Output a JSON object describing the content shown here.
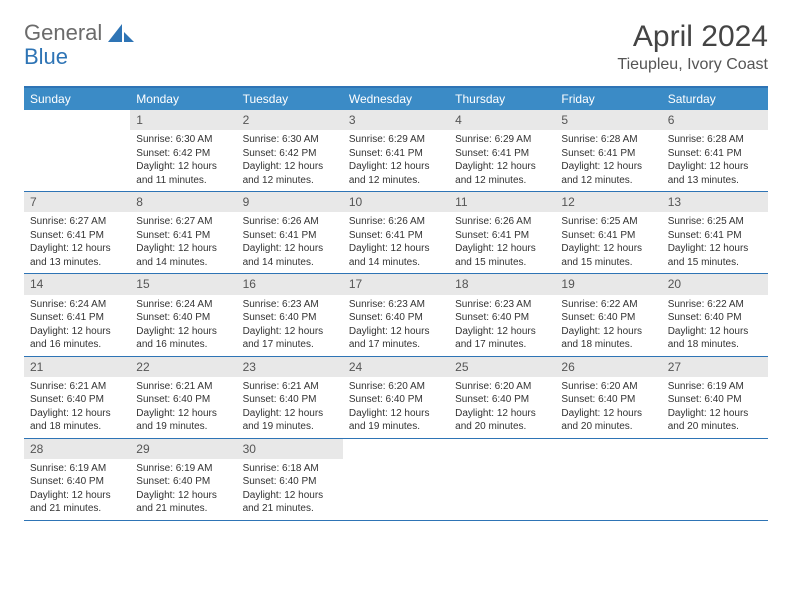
{
  "logo": {
    "part1": "General",
    "part2": "Blue"
  },
  "title": "April 2024",
  "location": "Tieupleu, Ivory Coast",
  "accent_color": "#2e74b5",
  "header_bg": "#3b8bc6",
  "daynum_bg": "#e8e8e8",
  "day_names": [
    "Sunday",
    "Monday",
    "Tuesday",
    "Wednesday",
    "Thursday",
    "Friday",
    "Saturday"
  ],
  "weeks": [
    [
      {},
      {
        "n": "1",
        "sr": "Sunrise: 6:30 AM",
        "ss": "Sunset: 6:42 PM",
        "d1": "Daylight: 12 hours",
        "d2": "and 11 minutes."
      },
      {
        "n": "2",
        "sr": "Sunrise: 6:30 AM",
        "ss": "Sunset: 6:42 PM",
        "d1": "Daylight: 12 hours",
        "d2": "and 12 minutes."
      },
      {
        "n": "3",
        "sr": "Sunrise: 6:29 AM",
        "ss": "Sunset: 6:41 PM",
        "d1": "Daylight: 12 hours",
        "d2": "and 12 minutes."
      },
      {
        "n": "4",
        "sr": "Sunrise: 6:29 AM",
        "ss": "Sunset: 6:41 PM",
        "d1": "Daylight: 12 hours",
        "d2": "and 12 minutes."
      },
      {
        "n": "5",
        "sr": "Sunrise: 6:28 AM",
        "ss": "Sunset: 6:41 PM",
        "d1": "Daylight: 12 hours",
        "d2": "and 12 minutes."
      },
      {
        "n": "6",
        "sr": "Sunrise: 6:28 AM",
        "ss": "Sunset: 6:41 PM",
        "d1": "Daylight: 12 hours",
        "d2": "and 13 minutes."
      }
    ],
    [
      {
        "n": "7",
        "sr": "Sunrise: 6:27 AM",
        "ss": "Sunset: 6:41 PM",
        "d1": "Daylight: 12 hours",
        "d2": "and 13 minutes."
      },
      {
        "n": "8",
        "sr": "Sunrise: 6:27 AM",
        "ss": "Sunset: 6:41 PM",
        "d1": "Daylight: 12 hours",
        "d2": "and 14 minutes."
      },
      {
        "n": "9",
        "sr": "Sunrise: 6:26 AM",
        "ss": "Sunset: 6:41 PM",
        "d1": "Daylight: 12 hours",
        "d2": "and 14 minutes."
      },
      {
        "n": "10",
        "sr": "Sunrise: 6:26 AM",
        "ss": "Sunset: 6:41 PM",
        "d1": "Daylight: 12 hours",
        "d2": "and 14 minutes."
      },
      {
        "n": "11",
        "sr": "Sunrise: 6:26 AM",
        "ss": "Sunset: 6:41 PM",
        "d1": "Daylight: 12 hours",
        "d2": "and 15 minutes."
      },
      {
        "n": "12",
        "sr": "Sunrise: 6:25 AM",
        "ss": "Sunset: 6:41 PM",
        "d1": "Daylight: 12 hours",
        "d2": "and 15 minutes."
      },
      {
        "n": "13",
        "sr": "Sunrise: 6:25 AM",
        "ss": "Sunset: 6:41 PM",
        "d1": "Daylight: 12 hours",
        "d2": "and 15 minutes."
      }
    ],
    [
      {
        "n": "14",
        "sr": "Sunrise: 6:24 AM",
        "ss": "Sunset: 6:41 PM",
        "d1": "Daylight: 12 hours",
        "d2": "and 16 minutes."
      },
      {
        "n": "15",
        "sr": "Sunrise: 6:24 AM",
        "ss": "Sunset: 6:40 PM",
        "d1": "Daylight: 12 hours",
        "d2": "and 16 minutes."
      },
      {
        "n": "16",
        "sr": "Sunrise: 6:23 AM",
        "ss": "Sunset: 6:40 PM",
        "d1": "Daylight: 12 hours",
        "d2": "and 17 minutes."
      },
      {
        "n": "17",
        "sr": "Sunrise: 6:23 AM",
        "ss": "Sunset: 6:40 PM",
        "d1": "Daylight: 12 hours",
        "d2": "and 17 minutes."
      },
      {
        "n": "18",
        "sr": "Sunrise: 6:23 AM",
        "ss": "Sunset: 6:40 PM",
        "d1": "Daylight: 12 hours",
        "d2": "and 17 minutes."
      },
      {
        "n": "19",
        "sr": "Sunrise: 6:22 AM",
        "ss": "Sunset: 6:40 PM",
        "d1": "Daylight: 12 hours",
        "d2": "and 18 minutes."
      },
      {
        "n": "20",
        "sr": "Sunrise: 6:22 AM",
        "ss": "Sunset: 6:40 PM",
        "d1": "Daylight: 12 hours",
        "d2": "and 18 minutes."
      }
    ],
    [
      {
        "n": "21",
        "sr": "Sunrise: 6:21 AM",
        "ss": "Sunset: 6:40 PM",
        "d1": "Daylight: 12 hours",
        "d2": "and 18 minutes."
      },
      {
        "n": "22",
        "sr": "Sunrise: 6:21 AM",
        "ss": "Sunset: 6:40 PM",
        "d1": "Daylight: 12 hours",
        "d2": "and 19 minutes."
      },
      {
        "n": "23",
        "sr": "Sunrise: 6:21 AM",
        "ss": "Sunset: 6:40 PM",
        "d1": "Daylight: 12 hours",
        "d2": "and 19 minutes."
      },
      {
        "n": "24",
        "sr": "Sunrise: 6:20 AM",
        "ss": "Sunset: 6:40 PM",
        "d1": "Daylight: 12 hours",
        "d2": "and 19 minutes."
      },
      {
        "n": "25",
        "sr": "Sunrise: 6:20 AM",
        "ss": "Sunset: 6:40 PM",
        "d1": "Daylight: 12 hours",
        "d2": "and 20 minutes."
      },
      {
        "n": "26",
        "sr": "Sunrise: 6:20 AM",
        "ss": "Sunset: 6:40 PM",
        "d1": "Daylight: 12 hours",
        "d2": "and 20 minutes."
      },
      {
        "n": "27",
        "sr": "Sunrise: 6:19 AM",
        "ss": "Sunset: 6:40 PM",
        "d1": "Daylight: 12 hours",
        "d2": "and 20 minutes."
      }
    ],
    [
      {
        "n": "28",
        "sr": "Sunrise: 6:19 AM",
        "ss": "Sunset: 6:40 PM",
        "d1": "Daylight: 12 hours",
        "d2": "and 21 minutes."
      },
      {
        "n": "29",
        "sr": "Sunrise: 6:19 AM",
        "ss": "Sunset: 6:40 PM",
        "d1": "Daylight: 12 hours",
        "d2": "and 21 minutes."
      },
      {
        "n": "30",
        "sr": "Sunrise: 6:18 AM",
        "ss": "Sunset: 6:40 PM",
        "d1": "Daylight: 12 hours",
        "d2": "and 21 minutes."
      },
      {},
      {},
      {},
      {}
    ]
  ]
}
